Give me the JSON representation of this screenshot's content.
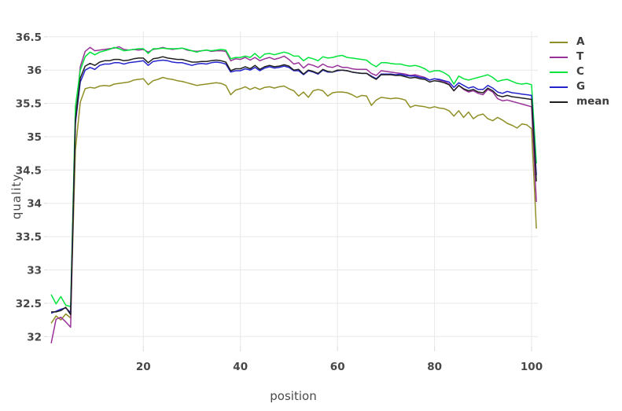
{
  "colors": {
    "background": "#ffffff",
    "grid": "#e8e8e8",
    "tick_mark": "#e0e0e0",
    "tick_text": "#474747",
    "axis_title_text": "#4a4a4a",
    "legend_text": "#3d3d3d"
  },
  "chart_data": {
    "type": "line",
    "title": "",
    "xlabel": "position",
    "ylabel": "quality",
    "grid": true,
    "legend_position": "right",
    "xlim": [
      0.5,
      101.3
    ],
    "ylim": [
      31.85,
      36.58
    ],
    "x_ticks": [
      20,
      40,
      60,
      80,
      100
    ],
    "y_ticks": [
      32,
      32.5,
      33,
      33.5,
      34,
      34.5,
      35,
      35.5,
      36,
      36.5
    ],
    "positions": [
      1,
      2,
      3,
      4,
      5,
      6,
      7,
      8,
      9,
      10,
      11,
      12,
      13,
      14,
      15,
      16,
      17,
      18,
      19,
      20,
      21,
      22,
      23,
      24,
      25,
      26,
      27,
      28,
      29,
      30,
      31,
      32,
      33,
      34,
      35,
      36,
      37,
      38,
      39,
      40,
      41,
      42,
      43,
      44,
      45,
      46,
      47,
      48,
      49,
      50,
      51,
      52,
      53,
      54,
      55,
      56,
      57,
      58,
      59,
      60,
      61,
      62,
      63,
      64,
      65,
      66,
      67,
      68,
      69,
      70,
      71,
      72,
      73,
      74,
      75,
      76,
      77,
      78,
      79,
      80,
      81,
      82,
      83,
      84,
      85,
      86,
      87,
      88,
      89,
      90,
      91,
      92,
      93,
      94,
      95,
      96,
      97,
      98,
      99,
      100,
      101
    ],
    "series": [
      {
        "name": "A",
        "color": "#8f8f26",
        "values": [
          32.2,
          32.31,
          32.25,
          32.34,
          32.28,
          34.8,
          35.52,
          35.72,
          35.74,
          35.73,
          35.76,
          35.77,
          35.76,
          35.79,
          35.8,
          35.81,
          35.82,
          35.85,
          35.86,
          35.87,
          35.78,
          35.84,
          35.86,
          35.89,
          35.87,
          35.86,
          35.84,
          35.83,
          35.81,
          35.79,
          35.77,
          35.78,
          35.79,
          35.8,
          35.81,
          35.8,
          35.77,
          35.63,
          35.7,
          35.72,
          35.75,
          35.71,
          35.74,
          35.71,
          35.74,
          35.75,
          35.73,
          35.75,
          35.76,
          35.72,
          35.69,
          35.61,
          35.67,
          35.59,
          35.69,
          35.71,
          35.69,
          35.61,
          35.66,
          35.67,
          35.67,
          35.66,
          35.63,
          35.59,
          35.62,
          35.61,
          35.47,
          35.55,
          35.59,
          35.58,
          35.57,
          35.58,
          35.57,
          35.55,
          35.44,
          35.47,
          35.46,
          35.45,
          35.43,
          35.45,
          35.43,
          35.42,
          35.39,
          35.31,
          35.39,
          35.29,
          35.37,
          35.27,
          35.32,
          35.34,
          35.27,
          35.24,
          35.29,
          35.25,
          35.2,
          35.17,
          35.13,
          35.19,
          35.18,
          35.12,
          33.62
        ]
      },
      {
        "name": "T",
        "color": "#993399",
        "values": [
          31.9,
          32.26,
          32.29,
          32.22,
          32.14,
          35.3,
          36.05,
          36.28,
          36.34,
          36.29,
          36.3,
          36.31,
          36.32,
          36.33,
          36.35,
          36.31,
          36.3,
          36.31,
          36.3,
          36.31,
          36.27,
          36.31,
          36.32,
          36.34,
          36.32,
          36.31,
          36.32,
          36.33,
          36.3,
          36.29,
          36.28,
          36.29,
          36.3,
          36.28,
          36.29,
          36.29,
          36.28,
          36.14,
          36.17,
          36.16,
          36.19,
          36.15,
          36.19,
          36.14,
          36.17,
          36.19,
          36.16,
          36.18,
          36.21,
          36.16,
          36.09,
          36.11,
          36.03,
          36.09,
          36.07,
          36.04,
          36.09,
          36.05,
          36.04,
          36.07,
          36.04,
          36.04,
          36.02,
          36.01,
          36.01,
          36.01,
          35.95,
          35.92,
          35.99,
          35.98,
          35.97,
          35.96,
          35.95,
          35.94,
          35.92,
          35.93,
          35.91,
          35.89,
          35.85,
          35.87,
          35.85,
          35.83,
          35.79,
          35.69,
          35.77,
          35.71,
          35.67,
          35.69,
          35.65,
          35.63,
          35.71,
          35.67,
          35.57,
          35.54,
          35.55,
          35.53,
          35.51,
          35.49,
          35.47,
          35.45,
          34.02
        ]
      },
      {
        "name": "C",
        "color": "#00e43c",
        "values": [
          32.63,
          32.49,
          32.6,
          32.47,
          32.45,
          35.45,
          36.0,
          36.2,
          36.27,
          36.23,
          36.27,
          36.29,
          36.31,
          36.34,
          36.32,
          36.29,
          36.3,
          36.31,
          36.32,
          36.32,
          36.25,
          36.32,
          36.32,
          36.33,
          36.32,
          36.32,
          36.32,
          36.33,
          36.31,
          36.29,
          36.27,
          36.29,
          36.3,
          36.29,
          36.3,
          36.31,
          36.3,
          36.17,
          36.19,
          36.19,
          36.21,
          36.19,
          36.25,
          36.18,
          36.24,
          36.25,
          36.23,
          36.25,
          36.27,
          36.25,
          36.21,
          36.21,
          36.14,
          36.19,
          36.17,
          36.14,
          36.2,
          36.18,
          36.19,
          36.21,
          36.22,
          36.19,
          36.18,
          36.17,
          36.16,
          36.15,
          36.09,
          36.05,
          36.11,
          36.11,
          36.1,
          36.09,
          36.09,
          36.07,
          36.06,
          36.07,
          36.05,
          36.02,
          35.97,
          35.99,
          35.99,
          35.96,
          35.91,
          35.79,
          35.91,
          35.87,
          35.85,
          35.87,
          35.89,
          35.91,
          35.93,
          35.89,
          35.83,
          35.85,
          35.86,
          35.83,
          35.8,
          35.79,
          35.8,
          35.78,
          34.6
        ]
      },
      {
        "name": "G",
        "color": "#2424cc",
        "values": [
          32.35,
          32.38,
          32.41,
          32.43,
          32.36,
          35.2,
          35.82,
          36.0,
          36.04,
          36.01,
          36.07,
          36.09,
          36.09,
          36.11,
          36.11,
          36.09,
          36.11,
          36.12,
          36.13,
          36.14,
          36.07,
          36.13,
          36.14,
          36.15,
          36.14,
          36.12,
          36.11,
          36.11,
          36.09,
          36.07,
          36.09,
          36.1,
          36.09,
          36.11,
          36.12,
          36.11,
          36.09,
          35.97,
          35.99,
          35.99,
          36.02,
          36.0,
          36.04,
          35.99,
          36.03,
          36.05,
          36.03,
          36.04,
          36.06,
          36.04,
          35.99,
          35.99,
          35.93,
          35.99,
          35.97,
          35.94,
          36.0,
          35.97,
          35.97,
          35.99,
          36.0,
          35.99,
          35.97,
          35.96,
          35.95,
          35.95,
          35.91,
          35.87,
          35.94,
          35.94,
          35.94,
          35.93,
          35.94,
          35.92,
          35.91,
          35.91,
          35.89,
          35.88,
          35.85,
          35.87,
          35.86,
          35.84,
          35.82,
          35.74,
          35.81,
          35.77,
          35.73,
          35.75,
          35.71,
          35.71,
          35.77,
          35.73,
          35.67,
          35.65,
          35.68,
          35.66,
          35.65,
          35.64,
          35.63,
          35.62,
          34.42
        ]
      },
      {
        "name": "mean",
        "color": "#202020",
        "values": [
          32.37,
          32.37,
          32.39,
          32.44,
          32.33,
          35.25,
          35.88,
          36.06,
          36.1,
          36.07,
          36.12,
          36.14,
          36.14,
          36.16,
          36.16,
          36.14,
          36.15,
          36.17,
          36.18,
          36.18,
          36.11,
          36.17,
          36.18,
          36.2,
          36.18,
          36.17,
          36.16,
          36.16,
          36.14,
          36.12,
          36.12,
          36.13,
          36.13,
          36.14,
          36.15,
          36.14,
          36.12,
          35.99,
          36.02,
          36.02,
          36.05,
          36.02,
          36.07,
          36.01,
          36.05,
          36.07,
          36.05,
          36.06,
          36.08,
          36.06,
          36.0,
          36.01,
          35.94,
          36.0,
          35.98,
          35.95,
          36.01,
          35.98,
          35.97,
          36.0,
          36.0,
          35.99,
          35.97,
          35.96,
          35.95,
          35.95,
          35.9,
          35.86,
          35.93,
          35.93,
          35.93,
          35.92,
          35.92,
          35.9,
          35.88,
          35.89,
          35.87,
          35.86,
          35.82,
          35.84,
          35.83,
          35.81,
          35.78,
          35.69,
          35.77,
          35.72,
          35.69,
          35.71,
          35.67,
          35.66,
          35.73,
          35.69,
          35.62,
          35.6,
          35.62,
          35.6,
          35.59,
          35.58,
          35.57,
          35.56,
          34.33
        ]
      }
    ]
  }
}
